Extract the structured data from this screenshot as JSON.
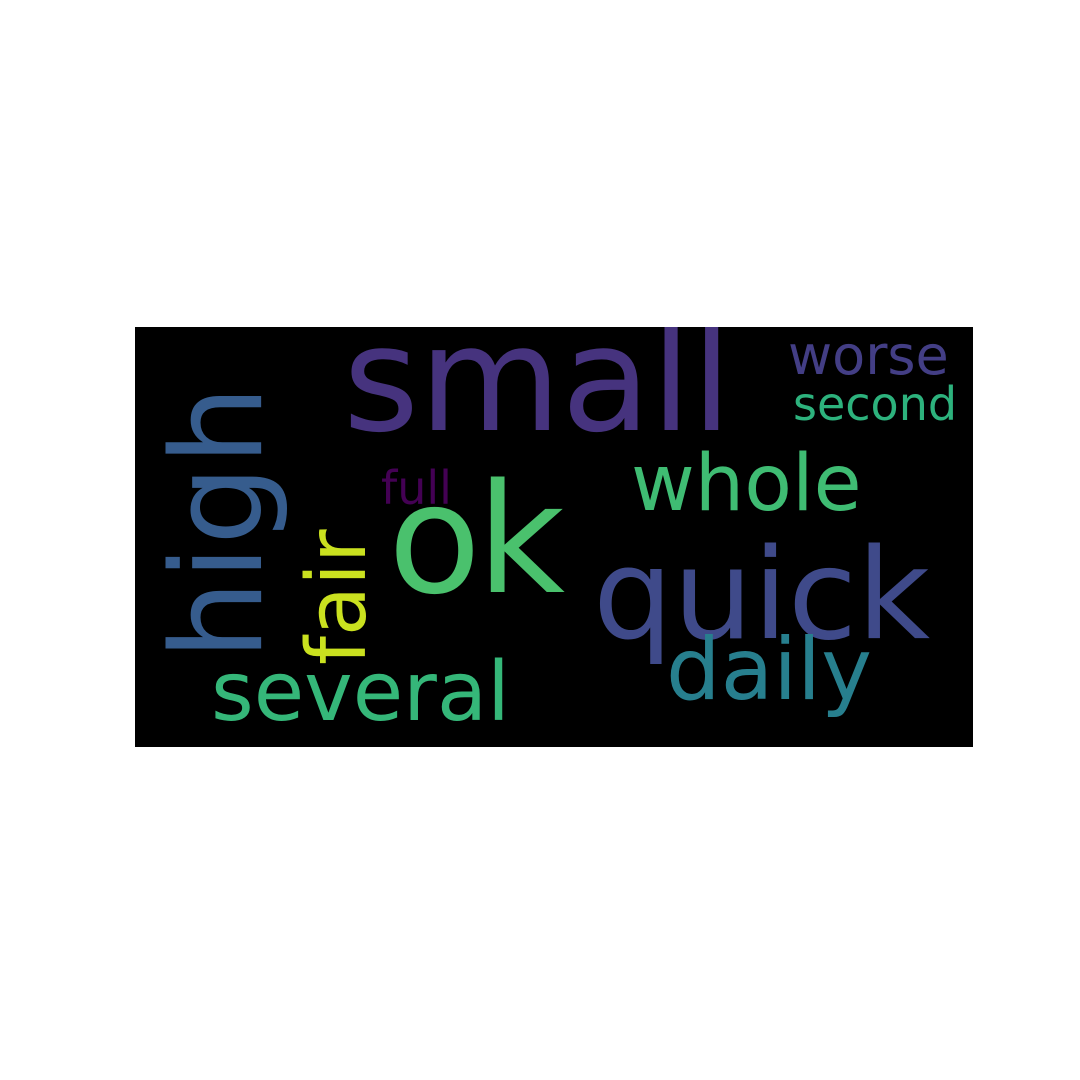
{
  "word_cloud": {
    "background_color": "#000000",
    "words": {
      "small": {
        "text": "small",
        "color": "#46337e"
      },
      "ok": {
        "text": "ok",
        "color": "#4ac16d"
      },
      "quick": {
        "text": "quick",
        "color": "#3f4a8a"
      },
      "high": {
        "text": "high",
        "color": "#365c8d"
      },
      "several": {
        "text": "several",
        "color": "#35b779"
      },
      "daily": {
        "text": "daily",
        "color": "#277f8e"
      },
      "whole": {
        "text": "whole",
        "color": "#3fbc73"
      },
      "fair": {
        "text": "fair",
        "color": "#cae11f"
      },
      "worse": {
        "text": "worse",
        "color": "#433e85"
      },
      "second": {
        "text": "second",
        "color": "#2db27d"
      },
      "full": {
        "text": "full",
        "color": "#440154"
      }
    }
  }
}
